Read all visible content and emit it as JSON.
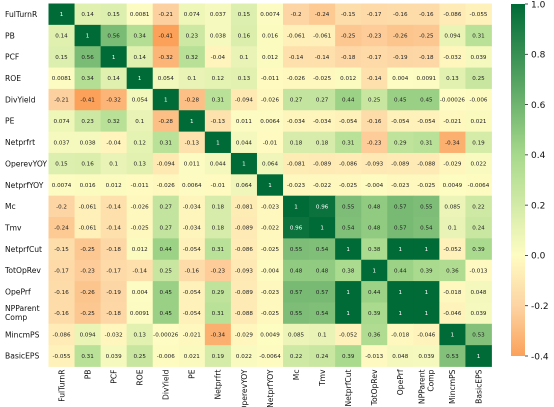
{
  "chart_data": {
    "type": "heatmap",
    "title": "",
    "xlabel": "",
    "ylabel": "",
    "row_labels": [
      "FulTurnR",
      "PB",
      "PCF",
      "ROE",
      "DivYield",
      "PE",
      "Netprfrt",
      "OperevYOY",
      "NetprfYOY",
      "Mc",
      "Tmv",
      "NetprfCut",
      "TotOpRev",
      "OpePrf",
      "NPParent Comp",
      "MincmPS",
      "BasicEPS"
    ],
    "col_labels": [
      "FulTurnR",
      "PB",
      "PCF",
      "ROE",
      "DivYield",
      "PE",
      "Netprfrt",
      "OperevYOY",
      "NetprfYOY",
      "Mc",
      "Tmv",
      "NetprfCut",
      "TotOpRev",
      "OpePrf",
      "NPParent Comp",
      "MincmPS",
      "BasicEPS"
    ],
    "value_labels": [
      [
        "1",
        "0.14",
        "0.15",
        "0.0081",
        "-0.21",
        "0.074",
        "0.037",
        "0.15",
        "0.0074",
        "-0.2",
        "-0.24",
        "-0.15",
        "-0.17",
        "-0.16",
        "-0.16",
        "-0.086",
        "-0.055"
      ],
      [
        "0.14",
        "1",
        "0.56",
        "0.34",
        "-0.41",
        "0.23",
        "0.038",
        "0.16",
        "0.016",
        "-0.061",
        "-0.061",
        "-0.25",
        "-0.23",
        "-0.26",
        "-0.25",
        "0.094",
        "0.31"
      ],
      [
        "0.15",
        "0.56",
        "1",
        "0.14",
        "-0.32",
        "0.32",
        "-0.04",
        "0.1",
        "0.012",
        "-0.14",
        "-0.14",
        "-0.18",
        "-0.17",
        "-0.19",
        "-0.18",
        "-0.032",
        "0.039"
      ],
      [
        "0.0081",
        "0.34",
        "0.14",
        "1",
        "0.054",
        "0.1",
        "0.12",
        "0.13",
        "-0.011",
        "-0.026",
        "-0.025",
        "0.012",
        "-0.14",
        "0.004",
        "0.0091",
        "0.13",
        "0.25"
      ],
      [
        "-0.21",
        "-0.41",
        "-0.32",
        "0.054",
        "1",
        "-0.28",
        "0.31",
        "-0.094",
        "-0.026",
        "0.27",
        "0.27",
        "0.44",
        "0.25",
        "0.45",
        "0.45",
        "-0.00026",
        "-0.006"
      ],
      [
        "0.074",
        "0.23",
        "0.32",
        "0.1",
        "-0.28",
        "1",
        "-0.13",
        "0.011",
        "0.0064",
        "-0.034",
        "-0.034",
        "-0.054",
        "-0.16",
        "-0.054",
        "-0.054",
        "-0.021",
        "0.021"
      ],
      [
        "0.037",
        "0.038",
        "-0.04",
        "0.12",
        "0.31",
        "-0.13",
        "1",
        "0.044",
        "-0.01",
        "0.18",
        "0.18",
        "0.31",
        "-0.23",
        "0.29",
        "0.31",
        "-0.34",
        "0.19"
      ],
      [
        "0.15",
        "0.16",
        "0.1",
        "0.13",
        "-0.094",
        "0.011",
        "0.044",
        "1",
        "0.064",
        "-0.081",
        "-0.089",
        "-0.086",
        "-0.093",
        "-0.089",
        "-0.088",
        "-0.029",
        "0.022"
      ],
      [
        "0.0074",
        "0.016",
        "0.012",
        "-0.011",
        "-0.026",
        "0.0064",
        "-0.01",
        "0.064",
        "1",
        "-0.023",
        "-0.022",
        "-0.025",
        "-0.004",
        "-0.023",
        "-0.025",
        "0.0049",
        "-0.0064"
      ],
      [
        "-0.2",
        "-0.061",
        "-0.14",
        "-0.026",
        "0.27",
        "-0.034",
        "0.18",
        "-0.081",
        "-0.023",
        "1",
        "0.96",
        "0.55",
        "0.48",
        "0.57",
        "0.55",
        "0.085",
        "0.22"
      ],
      [
        "-0.24",
        "-0.061",
        "-0.14",
        "-0.025",
        "0.27",
        "-0.034",
        "0.18",
        "-0.089",
        "-0.022",
        "0.96",
        "1",
        "0.54",
        "0.48",
        "0.57",
        "0.54",
        "0.1",
        "0.24"
      ],
      [
        "-0.15",
        "-0.25",
        "-0.18",
        "0.012",
        "0.44",
        "-0.054",
        "0.31",
        "-0.086",
        "-0.025",
        "0.55",
        "0.54",
        "1",
        "0.38",
        "1",
        "1",
        "-0.052",
        "0.39"
      ],
      [
        "-0.17",
        "-0.23",
        "-0.17",
        "-0.14",
        "0.25",
        "-0.16",
        "-0.23",
        "-0.093",
        "-0.004",
        "0.48",
        "0.48",
        "0.38",
        "1",
        "0.44",
        "0.39",
        "0.36",
        "-0.013"
      ],
      [
        "-0.16",
        "-0.26",
        "-0.19",
        "0.004",
        "0.45",
        "-0.054",
        "0.29",
        "-0.089",
        "-0.023",
        "0.57",
        "0.57",
        "1",
        "0.44",
        "1",
        "1",
        "-0.018",
        "0.048"
      ],
      [
        "-0.16",
        "-0.25",
        "-0.18",
        "0.0091",
        "0.45",
        "-0.054",
        "0.31",
        "-0.088",
        "-0.025",
        "0.55",
        "0.54",
        "1",
        "0.39",
        "1",
        "1",
        "-0.046",
        "0.039"
      ],
      [
        "-0.086",
        "0.094",
        "-0.032",
        "0.13",
        "-0.00026",
        "-0.021",
        "-0.34",
        "-0.029",
        "0.0049",
        "0.085",
        "0.1",
        "-0.052",
        "0.36",
        "-0.018",
        "-0.046",
        "1",
        "0.53"
      ],
      [
        "-0.055",
        "0.31",
        "0.039",
        "0.25",
        "-0.006",
        "0.021",
        "0.19",
        "0.022",
        "-0.0064",
        "0.22",
        "0.24",
        "0.39",
        "-0.013",
        "0.048",
        "0.039",
        "0.53",
        "1"
      ]
    ],
    "value_range": [
      -0.4,
      1.0
    ],
    "colorbar_ticks": [
      "-0.4",
      "-0.2",
      "0.0",
      "0.2",
      "0.4",
      "0.6",
      "0.8",
      "1.0"
    ],
    "colormap": {
      "low": "#fba15a",
      "mid_low": "#fdd4a3",
      "mid": "#fefcc2",
      "mid_high": "#a7d98c",
      "high": "#006b37"
    },
    "grid": false,
    "legend": "colorbar-right"
  }
}
